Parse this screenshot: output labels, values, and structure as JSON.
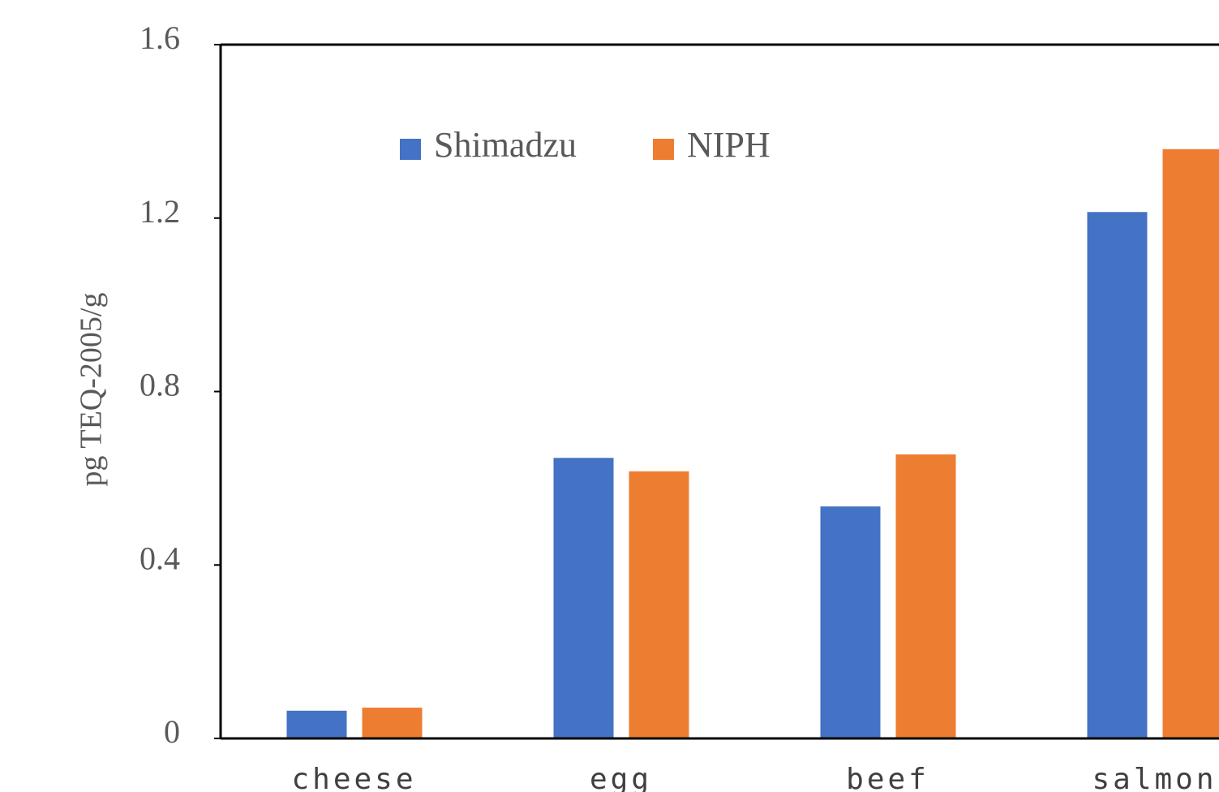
{
  "chart_data": {
    "type": "bar",
    "y_label": "pg TEQ-2005/g",
    "categories": [
      "cheese",
      "egg",
      "beef",
      "salmon"
    ],
    "series": [
      {
        "name": "Shimadzu",
        "color": "#4472c4",
        "values": [
          0.064,
          0.647,
          0.535,
          1.214
        ]
      },
      {
        "name": "NIPH",
        "color": "#ed7d31",
        "values": [
          0.071,
          0.616,
          0.655,
          1.359
        ]
      }
    ],
    "ylim": [
      0,
      1.6
    ],
    "yticks": [
      0,
      0.4,
      0.8,
      1.2,
      1.6
    ],
    "grid": false
  }
}
